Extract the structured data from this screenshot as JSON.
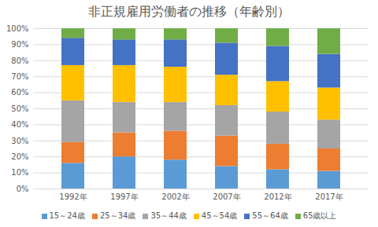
{
  "chart_data": {
    "type": "bar",
    "title": "非正規雇用労働者の推移（年齢別）",
    "stacked": true,
    "grid": true,
    "legend": "bottom",
    "categories": [
      "1992年",
      "1997年",
      "2002年",
      "2007年",
      "2012年",
      "2017年"
    ],
    "series": [
      {
        "name": "15～24歳",
        "color": "#5b9bd5",
        "values": [
          16,
          20,
          18,
          14,
          12,
          11
        ]
      },
      {
        "name": "25～34歳",
        "color": "#ed7d31",
        "values": [
          13,
          15,
          18,
          19,
          16,
          14
        ]
      },
      {
        "name": "35～44歳",
        "color": "#a5a5a5",
        "values": [
          26,
          19,
          18,
          19,
          20,
          18
        ]
      },
      {
        "name": "45～54歳",
        "color": "#ffc000",
        "values": [
          22,
          23,
          22,
          19,
          19,
          20
        ]
      },
      {
        "name": "55～64歳",
        "color": "#4472c4",
        "values": [
          17,
          16,
          17,
          20,
          22,
          21
        ]
      },
      {
        "name": "65歳以上",
        "color": "#70ad47",
        "values": [
          6,
          7,
          7,
          9,
          11,
          16
        ]
      }
    ],
    "ylim": [
      0,
      100
    ],
    "yticks": [
      {
        "value": 0,
        "label": "0%"
      },
      {
        "value": 10,
        "label": "10%"
      },
      {
        "value": 20,
        "label": "20%"
      },
      {
        "value": 30,
        "label": "30%"
      },
      {
        "value": 40,
        "label": "40%"
      },
      {
        "value": 50,
        "label": "50%"
      },
      {
        "value": 60,
        "label": "60%"
      },
      {
        "value": 70,
        "label": "70%"
      },
      {
        "value": 80,
        "label": "80%"
      },
      {
        "value": 90,
        "label": "90%"
      },
      {
        "value": 100,
        "label": "100%"
      }
    ]
  }
}
